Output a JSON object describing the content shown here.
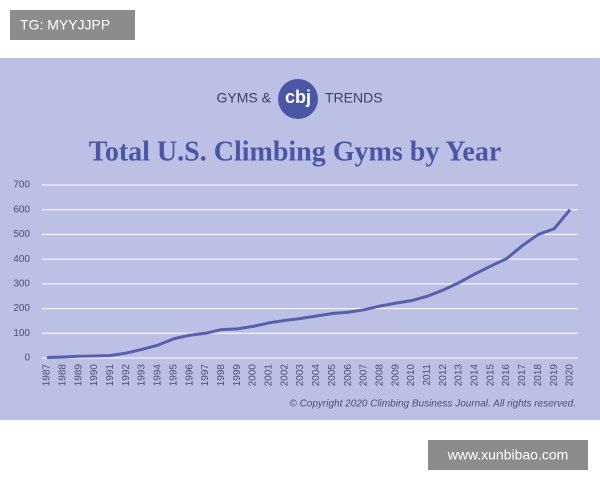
{
  "watermark_top": "TG: MYYJJPP",
  "watermark_bottom": "www.xunbibao.com",
  "chart_data": {
    "type": "line",
    "logo_left": "GYMS &",
    "logo_mark": "cbj",
    "logo_right": "TRENDS",
    "title": "Total U.S. Climbing Gyms by Year",
    "copyright": "© Copyright 2020 Climbing Business Journal. All rights reserved.",
    "categories": [
      "1987",
      "1988",
      "1989",
      "1990",
      "1991",
      "1992",
      "1993",
      "1994",
      "1995",
      "1996",
      "1997",
      "1998",
      "1999",
      "2000",
      "2001",
      "2002",
      "2003",
      "2004",
      "2005",
      "2006",
      "2007",
      "2008",
      "2009",
      "2010",
      "2011",
      "2012",
      "2013",
      "2014",
      "2015",
      "2016",
      "2017",
      "2018",
      "2019",
      "2020"
    ],
    "values": [
      2,
      4,
      7,
      8,
      10,
      20,
      35,
      52,
      78,
      92,
      100,
      115,
      118,
      128,
      142,
      152,
      160,
      170,
      180,
      185,
      195,
      210,
      222,
      232,
      250,
      275,
      305,
      340,
      372,
      402,
      455,
      500,
      523,
      600
    ],
    "color": "#5661ad",
    "ylim": [
      0,
      700
    ],
    "yticks": [
      0,
      100,
      200,
      300,
      400,
      500,
      600,
      700
    ],
    "grid": true
  }
}
